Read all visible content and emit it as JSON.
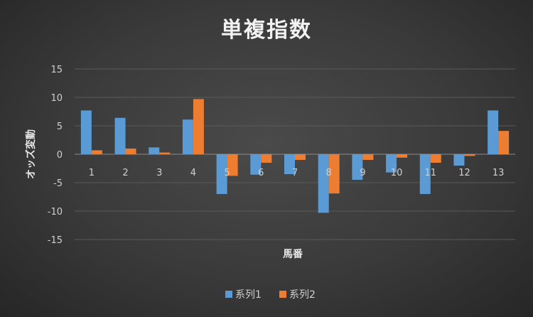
{
  "chart_data": {
    "type": "bar",
    "title": "単複指数",
    "xlabel": "馬番",
    "ylabel": "オッズ変動",
    "categories": [
      "1",
      "2",
      "3",
      "4",
      "5",
      "6",
      "7",
      "8",
      "9",
      "10",
      "11",
      "12",
      "13"
    ],
    "ylim": [
      -15,
      15
    ],
    "yticks": [
      15,
      10,
      5,
      0,
      -5,
      -10,
      -15
    ],
    "grid": true,
    "legend_position": "bottom",
    "series": [
      {
        "name": "系列1",
        "color": "#5b9bd5",
        "values": [
          7.7,
          6.4,
          1.2,
          6.1,
          -7.0,
          -3.6,
          -3.5,
          -10.3,
          -4.5,
          -3.2,
          -7.0,
          -2.0,
          7.7
        ]
      },
      {
        "name": "系列2",
        "color": "#ed7d31",
        "values": [
          0.7,
          1.0,
          0.3,
          9.7,
          -3.8,
          -1.5,
          -1.0,
          -6.9,
          -1.0,
          -0.6,
          -1.5,
          -0.3,
          4.1
        ]
      }
    ]
  }
}
